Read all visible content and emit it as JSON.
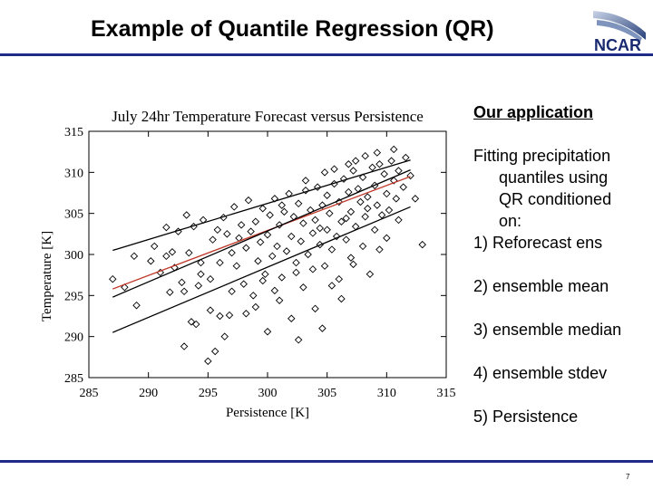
{
  "slide": {
    "title": "Example of Quantile Regression (QR)",
    "logo_text": "NCAR",
    "page_number": "7"
  },
  "side": {
    "heading": "Our application",
    "intro_line1": "Fitting precipitation",
    "intro_cont": [
      "quantiles using",
      "QR conditioned",
      "on:"
    ],
    "items": [
      {
        "num": "1)",
        "text": "Reforecast ens"
      },
      {
        "num": "2)",
        "text": "ensemble mean"
      },
      {
        "num": "3)",
        "text": "ensemble median"
      },
      {
        "num": "4)",
        "text": "ensemble stdev"
      },
      {
        "num": "5)",
        "text": "Persistence"
      }
    ]
  },
  "colors": {
    "accent": "#1e2b86",
    "median_line": "#c0392b",
    "quantile_lines": "#000000"
  },
  "chart_data": {
    "type": "scatter",
    "title": "July 24hr Temperature Forecast versus Persistence",
    "xlabel": "Persistence [K]",
    "ylabel": "Temperature [K]",
    "xlim": [
      285,
      315
    ],
    "ylim": [
      285,
      315
    ],
    "xticks": [
      285,
      290,
      295,
      300,
      305,
      310,
      315
    ],
    "yticks": [
      285,
      290,
      295,
      300,
      305,
      310,
      315
    ],
    "marker": "diamond",
    "regression_lines": [
      {
        "name": "upper quantile",
        "color": "#000000",
        "x": [
          287,
          312
        ],
        "y": [
          300.5,
          311.5
        ]
      },
      {
        "name": "median",
        "color": "#c0392b",
        "x": [
          287,
          312
        ],
        "y": [
          295.8,
          309.5
        ]
      },
      {
        "name": "upper-middle quantile",
        "color": "#000000",
        "x": [
          287,
          312
        ],
        "y": [
          294.8,
          310.3
        ]
      },
      {
        "name": "lower quantile",
        "color": "#000000",
        "x": [
          287,
          312
        ],
        "y": [
          290.5,
          305.8
        ]
      }
    ],
    "points": [
      [
        287.0,
        297.0
      ],
      [
        288.0,
        296.0
      ],
      [
        289.0,
        293.8
      ],
      [
        288.8,
        299.8
      ],
      [
        290.5,
        301.0
      ],
      [
        291.0,
        297.8
      ],
      [
        291.5,
        299.8
      ],
      [
        291.5,
        303.3
      ],
      [
        292.0,
        300.3
      ],
      [
        292.2,
        298.4
      ],
      [
        292.5,
        302.8
      ],
      [
        293.0,
        288.8
      ],
      [
        293.0,
        295.5
      ],
      [
        293.2,
        304.8
      ],
      [
        293.4,
        300.2
      ],
      [
        293.6,
        291.8
      ],
      [
        293.8,
        303.4
      ],
      [
        294.0,
        291.5
      ],
      [
        294.2,
        296.2
      ],
      [
        294.4,
        299.0
      ],
      [
        294.6,
        304.2
      ],
      [
        295.0,
        287.0
      ],
      [
        295.2,
        297.0
      ],
      [
        295.4,
        301.8
      ],
      [
        295.6,
        288.2
      ],
      [
        295.8,
        303.0
      ],
      [
        296.0,
        292.5
      ],
      [
        296.0,
        299.0
      ],
      [
        296.3,
        304.5
      ],
      [
        296.6,
        302.5
      ],
      [
        296.8,
        292.6
      ],
      [
        297.0,
        295.5
      ],
      [
        297.0,
        300.2
      ],
      [
        297.2,
        305.8
      ],
      [
        297.4,
        298.6
      ],
      [
        297.6,
        302.0
      ],
      [
        297.8,
        303.6
      ],
      [
        298.0,
        296.4
      ],
      [
        298.2,
        300.8
      ],
      [
        298.4,
        306.6
      ],
      [
        298.6,
        302.8
      ],
      [
        298.8,
        295.0
      ],
      [
        299.0,
        293.6
      ],
      [
        299.0,
        304.0
      ],
      [
        299.2,
        299.2
      ],
      [
        299.4,
        301.5
      ],
      [
        299.6,
        305.6
      ],
      [
        299.8,
        297.6
      ],
      [
        300.0,
        302.4
      ],
      [
        300.0,
        290.6
      ],
      [
        300.2,
        304.8
      ],
      [
        300.4,
        299.8
      ],
      [
        300.6,
        306.8
      ],
      [
        300.8,
        301.0
      ],
      [
        301.0,
        303.6
      ],
      [
        301.0,
        294.4
      ],
      [
        301.2,
        297.2
      ],
      [
        301.4,
        305.2
      ],
      [
        301.6,
        300.4
      ],
      [
        301.8,
        307.4
      ],
      [
        302.0,
        302.2
      ],
      [
        302.0,
        292.2
      ],
      [
        302.2,
        304.6
      ],
      [
        302.4,
        299.0
      ],
      [
        302.6,
        306.2
      ],
      [
        302.8,
        301.6
      ],
      [
        303.0,
        303.8
      ],
      [
        303.0,
        296.0
      ],
      [
        303.2,
        307.8
      ],
      [
        303.4,
        300.0
      ],
      [
        303.6,
        305.4
      ],
      [
        303.8,
        302.6
      ],
      [
        304.0,
        304.2
      ],
      [
        304.0,
        293.4
      ],
      [
        304.2,
        308.2
      ],
      [
        304.4,
        301.2
      ],
      [
        304.6,
        306.0
      ],
      [
        304.8,
        298.6
      ],
      [
        305.0,
        303.0
      ],
      [
        305.0,
        307.2
      ],
      [
        305.2,
        305.0
      ],
      [
        305.4,
        300.6
      ],
      [
        305.6,
        308.6
      ],
      [
        305.8,
        302.2
      ],
      [
        306.0,
        306.4
      ],
      [
        306.0,
        297.0
      ],
      [
        306.2,
        304.0
      ],
      [
        306.4,
        309.2
      ],
      [
        306.6,
        301.8
      ],
      [
        306.8,
        307.6
      ],
      [
        307.0,
        305.2
      ],
      [
        307.0,
        299.6
      ],
      [
        307.2,
        310.2
      ],
      [
        307.4,
        303.4
      ],
      [
        307.6,
        308.0
      ],
      [
        307.8,
        306.4
      ],
      [
        308.0,
        301.0
      ],
      [
        308.0,
        309.4
      ],
      [
        308.2,
        304.6
      ],
      [
        308.4,
        307.0
      ],
      [
        308.6,
        297.6
      ],
      [
        308.8,
        310.6
      ],
      [
        309.0,
        303.0
      ],
      [
        309.0,
        308.4
      ],
      [
        309.2,
        306.0
      ],
      [
        309.4,
        311.0
      ],
      [
        309.6,
        304.8
      ],
      [
        309.8,
        309.8
      ],
      [
        310.0,
        302.0
      ],
      [
        310.0,
        307.4
      ],
      [
        310.2,
        305.4
      ],
      [
        310.4,
        311.4
      ],
      [
        310.6,
        309.0
      ],
      [
        310.8,
        306.8
      ],
      [
        311.0,
        310.2
      ],
      [
        311.0,
        304.2
      ],
      [
        311.4,
        308.2
      ],
      [
        311.6,
        311.8
      ],
      [
        312.0,
        309.6
      ],
      [
        312.4,
        306.8
      ],
      [
        313.0,
        301.2
      ],
      [
        302.6,
        289.6
      ],
      [
        304.6,
        291.0
      ],
      [
        306.2,
        294.6
      ],
      [
        299.6,
        296.8
      ],
      [
        298.2,
        292.8
      ],
      [
        296.4,
        290.0
      ],
      [
        295.2,
        293.2
      ],
      [
        294.4,
        297.6
      ],
      [
        292.8,
        296.6
      ],
      [
        291.8,
        295.4
      ],
      [
        290.2,
        299.2
      ],
      [
        303.8,
        298.2
      ],
      [
        305.4,
        296.2
      ],
      [
        307.2,
        298.8
      ],
      [
        309.4,
        300.6
      ],
      [
        300.6,
        295.6
      ],
      [
        302.4,
        297.8
      ],
      [
        304.4,
        303.2
      ],
      [
        306.6,
        304.4
      ],
      [
        308.4,
        305.6
      ],
      [
        301.2,
        306.0
      ],
      [
        303.2,
        309.0
      ],
      [
        305.6,
        310.4
      ],
      [
        307.4,
        311.4
      ],
      [
        309.2,
        312.4
      ],
      [
        310.6,
        312.8
      ],
      [
        308.2,
        312.0
      ],
      [
        306.8,
        311.0
      ],
      [
        304.8,
        310.0
      ]
    ]
  }
}
